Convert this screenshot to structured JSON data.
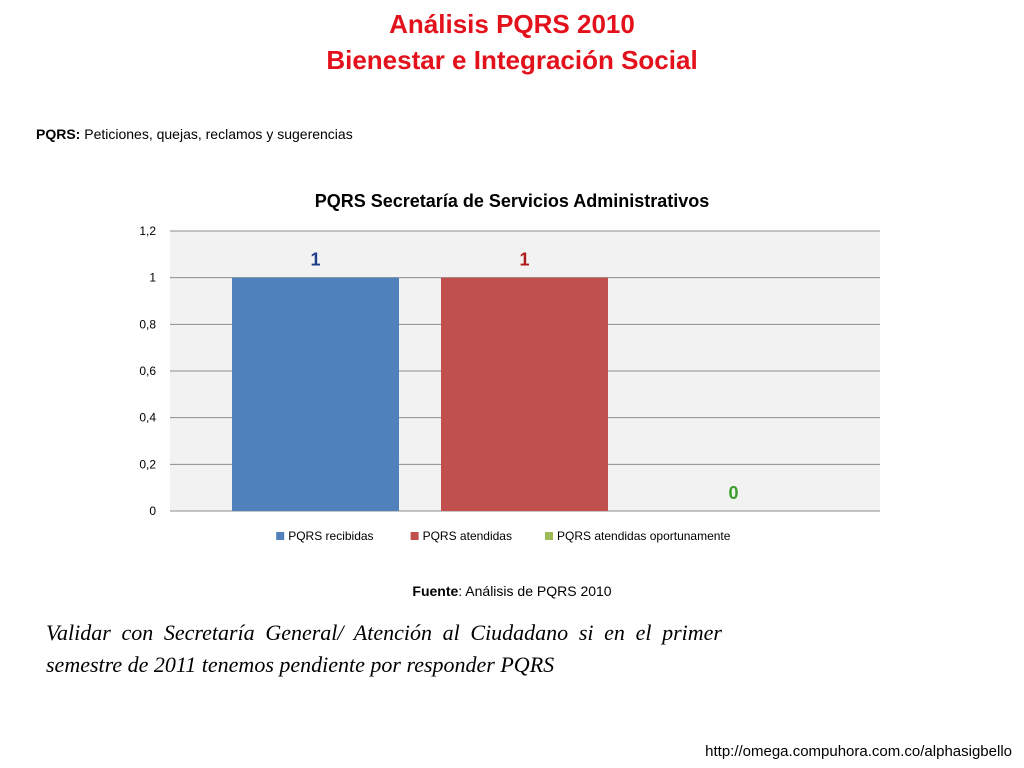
{
  "slide": {
    "title_line1": "Análisis PQRS 2010",
    "title_line2": "Bienestar e Integración Social",
    "definition_term": "PQRS:",
    "definition_text": " Peticiones, quejas, reclamos y sugerencias",
    "source_term": "Fuente",
    "source_text": ": Análisis de PQRS 2010",
    "note": "Validar con Secretaría General/ Atención al Ciudadano si en el primer semestre de 2011 tenemos pendiente por responder PQRS",
    "footer_url": "http://omega.compuhora.com.co/alphasigbello"
  },
  "colors": {
    "title": "#e3111b",
    "plot_bg": "#f2f2f2",
    "gridline": "#8c8c8c"
  },
  "chart_data": {
    "type": "bar",
    "title": "PQRS Secretaría de Servicios Administrativos",
    "xlabel": "",
    "ylabel": "",
    "ylim": [
      0,
      1.2
    ],
    "yticks": [
      "0",
      "0,2",
      "0,4",
      "0,6",
      "0,8",
      "1",
      "1,2"
    ],
    "grid": true,
    "legend_position": "bottom",
    "series": [
      {
        "name": "PQRS recibidas",
        "values": [
          1
        ],
        "labels": [
          "1"
        ],
        "color": "#4f81bd",
        "label_color": "#1f3d8a"
      },
      {
        "name": "PQRS atendidas",
        "values": [
          1
        ],
        "labels": [
          "1"
        ],
        "color": "#c0504d",
        "label_color": "#b01c1c"
      },
      {
        "name": "PQRS atendidas oportunamente",
        "values": [
          0
        ],
        "labels": [
          "0"
        ],
        "color": "#9bbb59",
        "label_color": "#3aa02b"
      }
    ]
  }
}
